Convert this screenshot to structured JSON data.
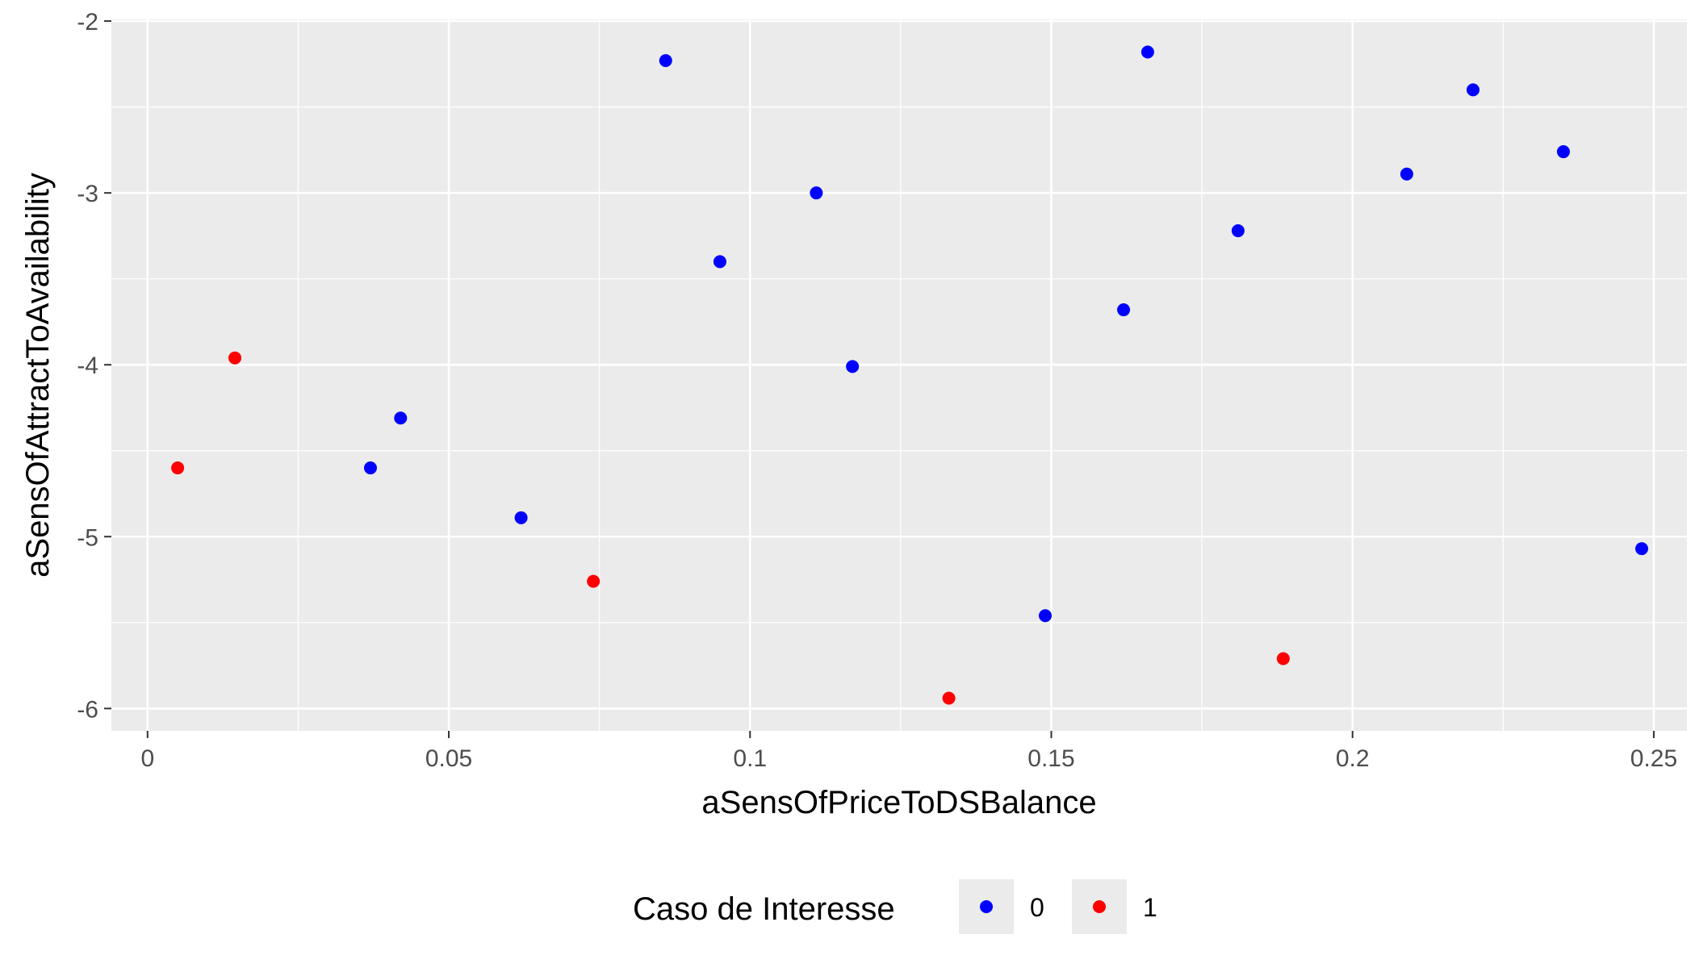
{
  "chart_data": {
    "type": "scatter",
    "title": "",
    "xlabel": "aSensOfPriceToDSBalance",
    "ylabel": "aSensOfAttractToAvailability",
    "xlim": [
      -0.006,
      0.2555
    ],
    "ylim": [
      -6.13,
      -1.99
    ],
    "x_ticks": [
      0,
      0.05,
      0.1,
      0.15,
      0.2,
      0.25
    ],
    "x_tick_labels": [
      "0",
      "0.05",
      "0.1",
      "0.15",
      "0.2",
      "0.25"
    ],
    "y_ticks": [
      -6,
      -5,
      -4,
      -3,
      -2
    ],
    "y_tick_labels": [
      "-6",
      "-5",
      "-4",
      "-3",
      "-2"
    ],
    "grid": true,
    "legend": {
      "title": "Caso de Interesse",
      "position": "bottom",
      "entries": [
        {
          "label": "0",
          "color": "#0000ff"
        },
        {
          "label": "1",
          "color": "#ff0000"
        }
      ]
    },
    "series": [
      {
        "name": "0",
        "color": "#0000ff",
        "points": [
          {
            "x": 0.037,
            "y": -4.6
          },
          {
            "x": 0.042,
            "y": -4.31
          },
          {
            "x": 0.062,
            "y": -4.89
          },
          {
            "x": 0.086,
            "y": -2.23
          },
          {
            "x": 0.095,
            "y": -3.4
          },
          {
            "x": 0.111,
            "y": -3.0
          },
          {
            "x": 0.117,
            "y": -4.01
          },
          {
            "x": 0.149,
            "y": -5.46
          },
          {
            "x": 0.162,
            "y": -3.68
          },
          {
            "x": 0.166,
            "y": -2.18
          },
          {
            "x": 0.181,
            "y": -3.22
          },
          {
            "x": 0.209,
            "y": -2.89
          },
          {
            "x": 0.22,
            "y": -2.4
          },
          {
            "x": 0.235,
            "y": -2.76
          },
          {
            "x": 0.248,
            "y": -5.07
          }
        ]
      },
      {
        "name": "1",
        "color": "#ff0000",
        "points": [
          {
            "x": 0.005,
            "y": -4.6
          },
          {
            "x": 0.0145,
            "y": -3.96
          },
          {
            "x": 0.074,
            "y": -5.26
          },
          {
            "x": 0.133,
            "y": -5.94
          },
          {
            "x": 0.1885,
            "y": -5.71
          }
        ]
      }
    ]
  }
}
